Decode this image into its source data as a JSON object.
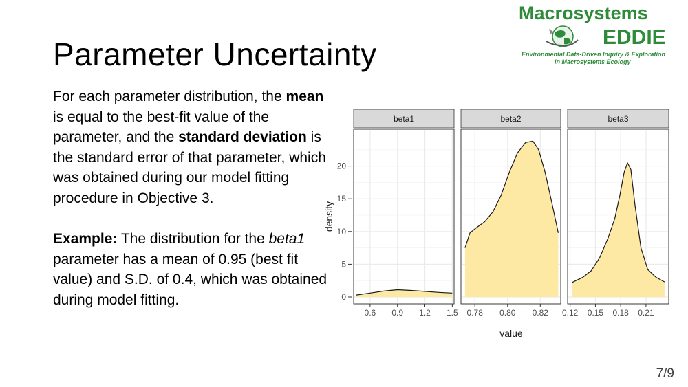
{
  "slide": {
    "title": "Parameter Uncertainty",
    "page_number": "7/9"
  },
  "logo": {
    "name_line1": "Macrosystems",
    "name_line2": "EDDIE",
    "tagline1": "Environmental Data-Driven Inquiry & Exploration",
    "tagline2": "in Macrosystems Ecology",
    "icon": "globe-with-hand-icon",
    "color": "#2e8b3a"
  },
  "text": {
    "p1_a": "For each parameter distribution, the ",
    "p1_mean": "mean",
    "p1_b": " is equal to the best-fit value of the parameter, and the ",
    "p1_sd": "standard deviation",
    "p1_c": " is the standard error of that parameter, which was obtained during our model fitting procedure in Objective 3.",
    "p2_label": "Example:",
    "p2_a": " The distribution for the ",
    "p2_param": "beta1",
    "p2_b": " parameter has a mean of 0.95 (best fit value) and S.D. of 0.4, which was obtained during model fitting."
  },
  "chart_data": {
    "type": "area",
    "ylabel": "density",
    "xlabel": "value",
    "ylim": [
      0,
      25
    ],
    "y_ticks": [
      0,
      5,
      10,
      15,
      20
    ],
    "fill_color": "#fde9a4",
    "line_color": "#1a1a1a",
    "panel_color": "#ffffff",
    "strip_color": "#d9d9d9",
    "grid_color": "#ebebeb",
    "panels": [
      {
        "name": "beta1",
        "xlim": [
          0.42,
          1.52
        ],
        "x_ticks": [
          0.6,
          0.9,
          1.2,
          1.5
        ],
        "x_tick_labels": [
          "0.6",
          "0.9",
          "1.2",
          "1.5"
        ],
        "x": [
          0.45,
          0.6,
          0.75,
          0.9,
          1.05,
          1.2,
          1.35,
          1.5
        ],
        "y": [
          0.3,
          0.6,
          0.9,
          1.1,
          1.0,
          0.85,
          0.7,
          0.6
        ]
      },
      {
        "name": "beta2",
        "xlim": [
          0.7715,
          0.8325
        ],
        "x_ticks": [
          0.78,
          0.8,
          0.82
        ],
        "x_tick_labels": [
          "0.78",
          "0.80",
          "0.82"
        ],
        "x": [
          0.774,
          0.777,
          0.781,
          0.786,
          0.791,
          0.796,
          0.801,
          0.806,
          0.811,
          0.8155,
          0.819,
          0.823,
          0.827,
          0.831
        ],
        "y": [
          7.5,
          9.8,
          10.6,
          11.5,
          13.0,
          15.5,
          19.0,
          22.0,
          23.6,
          23.8,
          22.5,
          19.0,
          14.5,
          9.8
        ]
      },
      {
        "name": "beta3",
        "xlim": [
          0.117,
          0.237
        ],
        "x_ticks": [
          0.12,
          0.15,
          0.18,
          0.21
        ],
        "x_tick_labels": [
          "0.12",
          "0.15",
          "0.18",
          "0.21"
        ],
        "x": [
          0.122,
          0.135,
          0.145,
          0.155,
          0.165,
          0.173,
          0.179,
          0.184,
          0.188,
          0.192,
          0.197,
          0.204,
          0.212,
          0.222,
          0.232
        ],
        "y": [
          2.2,
          3.0,
          4.0,
          6.0,
          9.0,
          12.0,
          15.5,
          19.0,
          20.5,
          19.5,
          14.0,
          7.5,
          4.2,
          3.0,
          2.3
        ]
      }
    ]
  }
}
